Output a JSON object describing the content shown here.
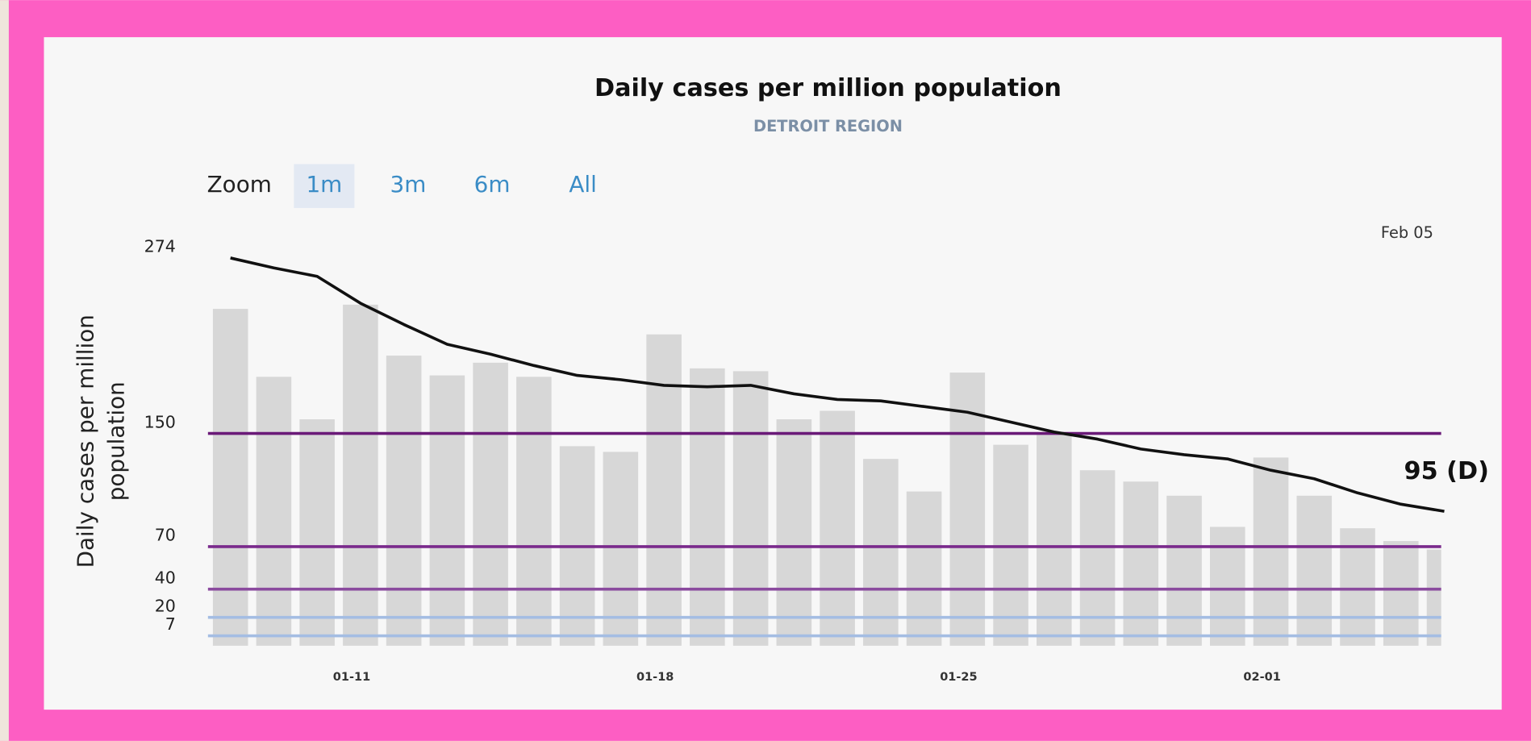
{
  "chart_data": {
    "type": "bar",
    "title": "Daily cases per million population",
    "subtitle": "DETROIT REGION",
    "zoom_label": "Zoom",
    "zoom_options": [
      "1m",
      "3m",
      "6m",
      "All"
    ],
    "zoom_selected": "1m",
    "date_label": "Feb 05",
    "ylabel": [
      "Daily cases per million",
      "population"
    ],
    "categories": [
      null,
      null,
      null,
      "01-11",
      null,
      null,
      null,
      null,
      null,
      null,
      "01-18",
      null,
      null,
      null,
      null,
      null,
      null,
      "01-25",
      null,
      null,
      null,
      null,
      null,
      null,
      "02-01",
      null,
      null,
      null,
      null
    ],
    "values": [
      238,
      190,
      160,
      241,
      205,
      191,
      200,
      190,
      141,
      137,
      220,
      196,
      194,
      160,
      166,
      132,
      109,
      193,
      142,
      149,
      124,
      116,
      106,
      84,
      133,
      106,
      83,
      74,
      68
    ],
    "color": "#d7d7d7",
    "line": {
      "color": "#111111",
      "values": [
        274,
        267,
        261,
        242,
        227,
        213,
        206,
        198,
        191,
        188,
        184,
        183,
        184,
        178,
        174,
        173,
        169,
        165,
        158,
        151,
        146,
        139,
        135,
        132,
        124,
        118,
        108,
        100,
        95
      ]
    },
    "annotation": "95 (D)",
    "ylim": [
      0,
      290
    ],
    "yticks": [
      7,
      20,
      40,
      70,
      150,
      274
    ],
    "thresholds": [
      {
        "value": 7,
        "color": "#a4bde3"
      },
      {
        "value": 20,
        "color": "#a4bde3"
      },
      {
        "value": 40,
        "color": "#8a4a9e"
      },
      {
        "value": 70,
        "color": "#7a2a8c"
      },
      {
        "value": 150,
        "color": "#6a1a78"
      }
    ]
  }
}
